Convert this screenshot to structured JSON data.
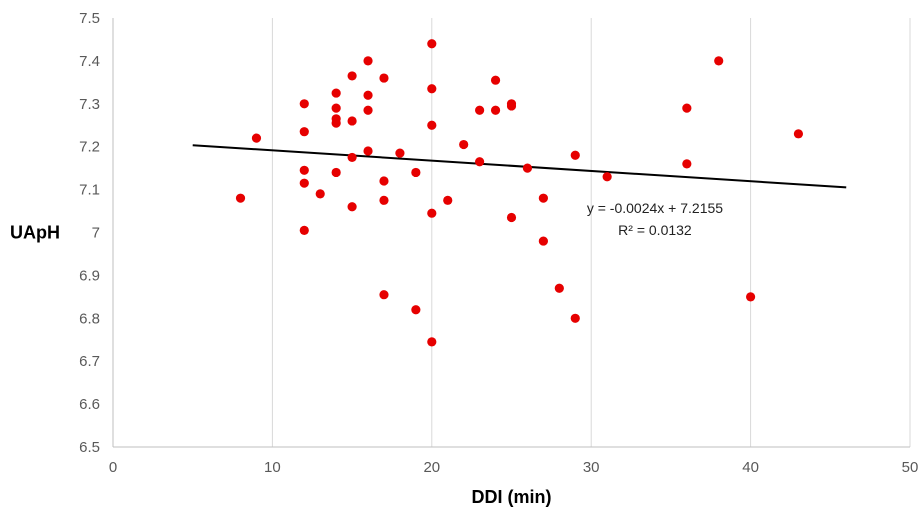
{
  "chart_data": {
    "type": "scatter",
    "title": "",
    "xlabel": "DDI (min)",
    "ylabel": "UApH",
    "xlim": [
      0,
      50
    ],
    "ylim": [
      6.5,
      7.5
    ],
    "x_ticks": [
      "0",
      "10",
      "20",
      "30",
      "40",
      "50"
    ],
    "y_ticks": [
      "6.5",
      "6.6",
      "6.7",
      "6.8",
      "6.9",
      "7",
      "7.1",
      "7.2",
      "7.3",
      "7.4",
      "7.5"
    ],
    "grid": "vertical",
    "marker_color": "#e60000",
    "trendline_color": "#000000",
    "points": [
      {
        "x": 8,
        "y": 7.08
      },
      {
        "x": 9,
        "y": 7.22
      },
      {
        "x": 12,
        "y": 7.3
      },
      {
        "x": 12,
        "y": 7.235
      },
      {
        "x": 12,
        "y": 7.145
      },
      {
        "x": 12,
        "y": 7.115
      },
      {
        "x": 12,
        "y": 7.005
      },
      {
        "x": 13,
        "y": 7.09
      },
      {
        "x": 14,
        "y": 7.325
      },
      {
        "x": 14,
        "y": 7.29
      },
      {
        "x": 14,
        "y": 7.265
      },
      {
        "x": 14,
        "y": 7.255
      },
      {
        "x": 14,
        "y": 7.14
      },
      {
        "x": 15,
        "y": 7.365
      },
      {
        "x": 15,
        "y": 7.26
      },
      {
        "x": 15,
        "y": 7.175
      },
      {
        "x": 15,
        "y": 7.06
      },
      {
        "x": 16,
        "y": 7.4
      },
      {
        "x": 16,
        "y": 7.32
      },
      {
        "x": 16,
        "y": 7.285
      },
      {
        "x": 16,
        "y": 7.19
      },
      {
        "x": 17,
        "y": 7.36
      },
      {
        "x": 17,
        "y": 7.12
      },
      {
        "x": 17,
        "y": 7.075
      },
      {
        "x": 17,
        "y": 6.855
      },
      {
        "x": 18,
        "y": 7.185
      },
      {
        "x": 19,
        "y": 7.14
      },
      {
        "x": 19,
        "y": 6.82
      },
      {
        "x": 20,
        "y": 7.44
      },
      {
        "x": 20,
        "y": 7.335
      },
      {
        "x": 20,
        "y": 7.25
      },
      {
        "x": 20,
        "y": 7.045
      },
      {
        "x": 20,
        "y": 6.745
      },
      {
        "x": 21,
        "y": 7.075
      },
      {
        "x": 22,
        "y": 7.205
      },
      {
        "x": 23,
        "y": 7.285
      },
      {
        "x": 23,
        "y": 7.165
      },
      {
        "x": 24,
        "y": 7.355
      },
      {
        "x": 24,
        "y": 7.285
      },
      {
        "x": 25,
        "y": 7.3
      },
      {
        "x": 25,
        "y": 7.295
      },
      {
        "x": 25,
        "y": 7.035
      },
      {
        "x": 26,
        "y": 7.15
      },
      {
        "x": 27,
        "y": 7.08
      },
      {
        "x": 27,
        "y": 6.98
      },
      {
        "x": 28,
        "y": 6.87
      },
      {
        "x": 29,
        "y": 7.18
      },
      {
        "x": 29,
        "y": 6.8
      },
      {
        "x": 31,
        "y": 7.13
      },
      {
        "x": 36,
        "y": 7.29
      },
      {
        "x": 36,
        "y": 7.16
      },
      {
        "x": 38,
        "y": 7.4
      },
      {
        "x": 40,
        "y": 6.85
      },
      {
        "x": 43,
        "y": 7.23
      }
    ],
    "trendline": {
      "slope": -0.0024,
      "intercept": 7.2155,
      "x_start": 5,
      "x_end": 46
    },
    "annotation": {
      "equation": "y = -0.0024x + 7.2155",
      "r_squared": "R² = 0.0132",
      "x": 34,
      "y": 7.045
    }
  }
}
